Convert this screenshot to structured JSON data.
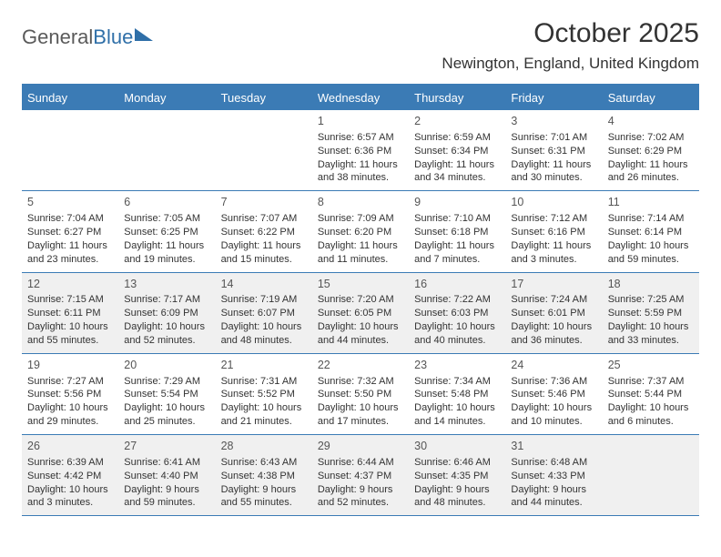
{
  "logo": {
    "part1": "General",
    "part2": "Blue"
  },
  "title": "October 2025",
  "location": "Newington, England, United Kingdom",
  "colors": {
    "accent": "#3b7bb5",
    "header_bg": "#3b7bb5",
    "shaded_row": "#f0f0f0",
    "background": "#ffffff",
    "text": "#333333",
    "logo_gray": "#5a5a5a",
    "logo_blue": "#2f6fa8"
  },
  "day_names": [
    "Sunday",
    "Monday",
    "Tuesday",
    "Wednesday",
    "Thursday",
    "Friday",
    "Saturday"
  ],
  "weeks": [
    {
      "shaded": false,
      "days": [
        {
          "num": "",
          "sunrise": "",
          "sunset": "",
          "daylight": ""
        },
        {
          "num": "",
          "sunrise": "",
          "sunset": "",
          "daylight": ""
        },
        {
          "num": "",
          "sunrise": "",
          "sunset": "",
          "daylight": ""
        },
        {
          "num": "1",
          "sunrise": "Sunrise: 6:57 AM",
          "sunset": "Sunset: 6:36 PM",
          "daylight": "Daylight: 11 hours and 38 minutes."
        },
        {
          "num": "2",
          "sunrise": "Sunrise: 6:59 AM",
          "sunset": "Sunset: 6:34 PM",
          "daylight": "Daylight: 11 hours and 34 minutes."
        },
        {
          "num": "3",
          "sunrise": "Sunrise: 7:01 AM",
          "sunset": "Sunset: 6:31 PM",
          "daylight": "Daylight: 11 hours and 30 minutes."
        },
        {
          "num": "4",
          "sunrise": "Sunrise: 7:02 AM",
          "sunset": "Sunset: 6:29 PM",
          "daylight": "Daylight: 11 hours and 26 minutes."
        }
      ]
    },
    {
      "shaded": false,
      "days": [
        {
          "num": "5",
          "sunrise": "Sunrise: 7:04 AM",
          "sunset": "Sunset: 6:27 PM",
          "daylight": "Daylight: 11 hours and 23 minutes."
        },
        {
          "num": "6",
          "sunrise": "Sunrise: 7:05 AM",
          "sunset": "Sunset: 6:25 PM",
          "daylight": "Daylight: 11 hours and 19 minutes."
        },
        {
          "num": "7",
          "sunrise": "Sunrise: 7:07 AM",
          "sunset": "Sunset: 6:22 PM",
          "daylight": "Daylight: 11 hours and 15 minutes."
        },
        {
          "num": "8",
          "sunrise": "Sunrise: 7:09 AM",
          "sunset": "Sunset: 6:20 PM",
          "daylight": "Daylight: 11 hours and 11 minutes."
        },
        {
          "num": "9",
          "sunrise": "Sunrise: 7:10 AM",
          "sunset": "Sunset: 6:18 PM",
          "daylight": "Daylight: 11 hours and 7 minutes."
        },
        {
          "num": "10",
          "sunrise": "Sunrise: 7:12 AM",
          "sunset": "Sunset: 6:16 PM",
          "daylight": "Daylight: 11 hours and 3 minutes."
        },
        {
          "num": "11",
          "sunrise": "Sunrise: 7:14 AM",
          "sunset": "Sunset: 6:14 PM",
          "daylight": "Daylight: 10 hours and 59 minutes."
        }
      ]
    },
    {
      "shaded": true,
      "days": [
        {
          "num": "12",
          "sunrise": "Sunrise: 7:15 AM",
          "sunset": "Sunset: 6:11 PM",
          "daylight": "Daylight: 10 hours and 55 minutes."
        },
        {
          "num": "13",
          "sunrise": "Sunrise: 7:17 AM",
          "sunset": "Sunset: 6:09 PM",
          "daylight": "Daylight: 10 hours and 52 minutes."
        },
        {
          "num": "14",
          "sunrise": "Sunrise: 7:19 AM",
          "sunset": "Sunset: 6:07 PM",
          "daylight": "Daylight: 10 hours and 48 minutes."
        },
        {
          "num": "15",
          "sunrise": "Sunrise: 7:20 AM",
          "sunset": "Sunset: 6:05 PM",
          "daylight": "Daylight: 10 hours and 44 minutes."
        },
        {
          "num": "16",
          "sunrise": "Sunrise: 7:22 AM",
          "sunset": "Sunset: 6:03 PM",
          "daylight": "Daylight: 10 hours and 40 minutes."
        },
        {
          "num": "17",
          "sunrise": "Sunrise: 7:24 AM",
          "sunset": "Sunset: 6:01 PM",
          "daylight": "Daylight: 10 hours and 36 minutes."
        },
        {
          "num": "18",
          "sunrise": "Sunrise: 7:25 AM",
          "sunset": "Sunset: 5:59 PM",
          "daylight": "Daylight: 10 hours and 33 minutes."
        }
      ]
    },
    {
      "shaded": false,
      "days": [
        {
          "num": "19",
          "sunrise": "Sunrise: 7:27 AM",
          "sunset": "Sunset: 5:56 PM",
          "daylight": "Daylight: 10 hours and 29 minutes."
        },
        {
          "num": "20",
          "sunrise": "Sunrise: 7:29 AM",
          "sunset": "Sunset: 5:54 PM",
          "daylight": "Daylight: 10 hours and 25 minutes."
        },
        {
          "num": "21",
          "sunrise": "Sunrise: 7:31 AM",
          "sunset": "Sunset: 5:52 PM",
          "daylight": "Daylight: 10 hours and 21 minutes."
        },
        {
          "num": "22",
          "sunrise": "Sunrise: 7:32 AM",
          "sunset": "Sunset: 5:50 PM",
          "daylight": "Daylight: 10 hours and 17 minutes."
        },
        {
          "num": "23",
          "sunrise": "Sunrise: 7:34 AM",
          "sunset": "Sunset: 5:48 PM",
          "daylight": "Daylight: 10 hours and 14 minutes."
        },
        {
          "num": "24",
          "sunrise": "Sunrise: 7:36 AM",
          "sunset": "Sunset: 5:46 PM",
          "daylight": "Daylight: 10 hours and 10 minutes."
        },
        {
          "num": "25",
          "sunrise": "Sunrise: 7:37 AM",
          "sunset": "Sunset: 5:44 PM",
          "daylight": "Daylight: 10 hours and 6 minutes."
        }
      ]
    },
    {
      "shaded": true,
      "days": [
        {
          "num": "26",
          "sunrise": "Sunrise: 6:39 AM",
          "sunset": "Sunset: 4:42 PM",
          "daylight": "Daylight: 10 hours and 3 minutes."
        },
        {
          "num": "27",
          "sunrise": "Sunrise: 6:41 AM",
          "sunset": "Sunset: 4:40 PM",
          "daylight": "Daylight: 9 hours and 59 minutes."
        },
        {
          "num": "28",
          "sunrise": "Sunrise: 6:43 AM",
          "sunset": "Sunset: 4:38 PM",
          "daylight": "Daylight: 9 hours and 55 minutes."
        },
        {
          "num": "29",
          "sunrise": "Sunrise: 6:44 AM",
          "sunset": "Sunset: 4:37 PM",
          "daylight": "Daylight: 9 hours and 52 minutes."
        },
        {
          "num": "30",
          "sunrise": "Sunrise: 6:46 AM",
          "sunset": "Sunset: 4:35 PM",
          "daylight": "Daylight: 9 hours and 48 minutes."
        },
        {
          "num": "31",
          "sunrise": "Sunrise: 6:48 AM",
          "sunset": "Sunset: 4:33 PM",
          "daylight": "Daylight: 9 hours and 44 minutes."
        },
        {
          "num": "",
          "sunrise": "",
          "sunset": "",
          "daylight": ""
        }
      ]
    }
  ]
}
